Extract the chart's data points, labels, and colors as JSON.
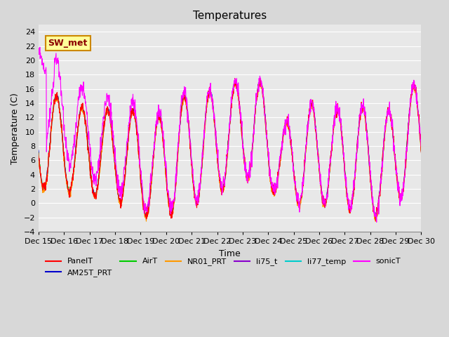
{
  "title": "Temperatures",
  "xlabel": "Time",
  "ylabel": "Temperature (C)",
  "ylim": [
    -4,
    25
  ],
  "yticks": [
    -4,
    -2,
    0,
    2,
    4,
    6,
    8,
    10,
    12,
    14,
    16,
    18,
    20,
    22,
    24
  ],
  "xtick_labels": [
    "Dec 15",
    "Dec 16",
    "Dec 17",
    "Dec 18",
    "Dec 19",
    "Dec 20",
    "Dec 21",
    "Dec 22",
    "Dec 23",
    "Dec 24",
    "Dec 25",
    "Dec 26",
    "Dec 27",
    "Dec 28",
    "Dec 29",
    "Dec 30"
  ],
  "annotation_text": "SW_met",
  "series_colors": {
    "PanelT": "#ff0000",
    "AM25T_PRT": "#0000cc",
    "AirT": "#00cc00",
    "NR01_PRT": "#ff9900",
    "li75_t": "#8800cc",
    "li77_temp": "#00cccc",
    "sonicT": "#ff00ff"
  },
  "background_color": "#d8d8d8",
  "plot_bg_color": "#e8e8e8",
  "grid_color": "#ffffff",
  "title_fontsize": 11,
  "label_fontsize": 9,
  "tick_fontsize": 8,
  "legend_fontsize": 8
}
